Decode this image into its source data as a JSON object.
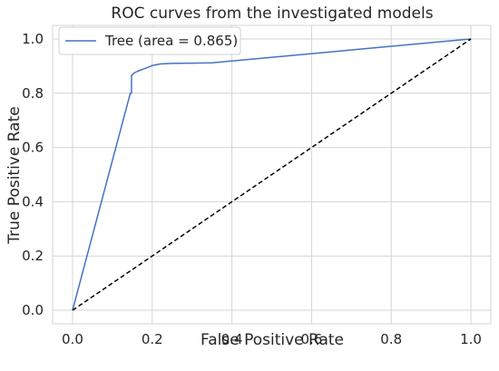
{
  "chart_data": {
    "type": "line",
    "title": "ROC curves from the investigated models",
    "xlabel": "False Positive Rate",
    "ylabel": "True Positive Rate",
    "xlim": [
      -0.05,
      1.05
    ],
    "ylim": [
      -0.05,
      1.05
    ],
    "xticks": [
      0.0,
      0.2,
      0.4,
      0.6,
      0.8,
      1.0
    ],
    "yticks": [
      0.0,
      0.2,
      0.4,
      0.6,
      0.8,
      1.0
    ],
    "xtick_labels": [
      "0.0",
      "0.2",
      "0.4",
      "0.6",
      "0.8",
      "1.0"
    ],
    "ytick_labels": [
      "0.0",
      "0.2",
      "0.4",
      "0.6",
      "0.8",
      "1.0"
    ],
    "grid": true,
    "legend_position": "top-left",
    "series": [
      {
        "name": "Tree (area = 0.865)",
        "color": "#4472c4",
        "dash": "solid",
        "x": [
          0.0,
          0.145,
          0.148,
          0.148,
          0.155,
          0.165,
          0.18,
          0.2,
          0.22,
          0.25,
          0.3,
          0.35,
          1.0
        ],
        "y": [
          0.0,
          0.8,
          0.8,
          0.865,
          0.875,
          0.882,
          0.89,
          0.902,
          0.908,
          0.91,
          0.911,
          0.912,
          1.0
        ]
      },
      {
        "color": "#000000",
        "dash": "dashed",
        "x": [
          0.0,
          1.0
        ],
        "y": [
          0.0,
          1.0
        ]
      }
    ]
  }
}
